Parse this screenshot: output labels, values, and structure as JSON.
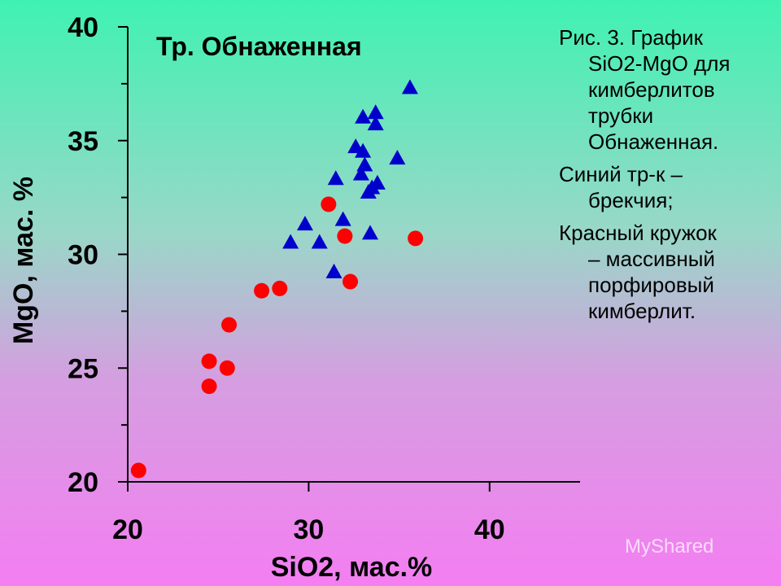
{
  "chart_data": {
    "type": "scatter",
    "title": "Тр. Обнаженная",
    "xlabel": "SiO2, мас.%",
    "ylabel": "MgO, мас. %",
    "xlim": [
      20,
      45
    ],
    "ylim": [
      20,
      40
    ],
    "xticks": [
      "20",
      "30",
      "40"
    ],
    "yticks": [
      "20",
      "25",
      "30",
      "35",
      "40"
    ],
    "grid": false,
    "series": [
      {
        "marker": "circle",
        "color": "#ff0000",
        "points": [
          [
            20.6,
            20.5
          ],
          [
            24.5,
            25.3
          ],
          [
            24.5,
            24.2
          ],
          [
            25.5,
            25.0
          ],
          [
            25.6,
            26.9
          ],
          [
            27.4,
            28.4
          ],
          [
            28.4,
            28.5
          ],
          [
            31.1,
            32.2
          ],
          [
            32.0,
            30.8
          ],
          [
            32.3,
            28.8
          ],
          [
            35.9,
            30.7
          ]
        ]
      },
      {
        "marker": "triangle",
        "color": "#0000cc",
        "points": [
          [
            29.0,
            30.5
          ],
          [
            29.8,
            31.3
          ],
          [
            30.6,
            30.5
          ],
          [
            31.4,
            29.2
          ],
          [
            31.5,
            33.3
          ],
          [
            31.9,
            31.5
          ],
          [
            32.6,
            34.7
          ],
          [
            33.0,
            34.5
          ],
          [
            33.0,
            36.0
          ],
          [
            32.9,
            33.5
          ],
          [
            33.1,
            33.9
          ],
          [
            33.3,
            32.7
          ],
          [
            33.4,
            30.9
          ],
          [
            33.5,
            32.9
          ],
          [
            33.7,
            36.2
          ],
          [
            33.7,
            35.7
          ],
          [
            33.8,
            33.1
          ],
          [
            34.9,
            34.2
          ],
          [
            35.6,
            37.3
          ]
        ]
      }
    ]
  },
  "caption": {
    "p1_l1": "Рис. 3. График",
    "p1_l2": "SiO2-MgO для",
    "p1_l3": "кимберлитов",
    "p1_l4": "трубки",
    "p1_l5": "Обнаженная.",
    "p2_l1": "Синий тр-к –",
    "p2_l2": "брекчия;",
    "p3_l1": "Красный кружок",
    "p3_l2": "– массивный",
    "p3_l3": "порфировый",
    "p3_l4": "кимберлит."
  },
  "watermark": "MyShared"
}
